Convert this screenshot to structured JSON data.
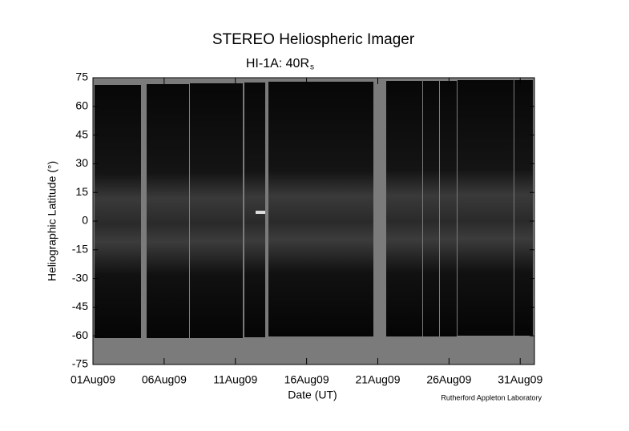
{
  "chart_data": {
    "type": "image",
    "title": "STEREO Heliospheric Imager",
    "subtitle": {
      "text": "HI-1A: 40R",
      "subscript": "s"
    },
    "x_label": "Date (UT)",
    "y_label": "Heliographic Latitude (°)",
    "credit": "Rutherford Appleton Laboratory",
    "xlim": [
      "2009-08-01",
      "2009-09-01"
    ],
    "xticks": [
      {
        "value": "2009-08-01",
        "label": "01Aug09"
      },
      {
        "value": "2009-08-06",
        "label": "06Aug09"
      },
      {
        "value": "2009-08-11",
        "label": "11Aug09"
      },
      {
        "value": "2009-08-16",
        "label": "16Aug09"
      },
      {
        "value": "2009-08-21",
        "label": "21Aug09"
      },
      {
        "value": "2009-08-26",
        "label": "26Aug09"
      },
      {
        "value": "2009-08-31",
        "label": "31Aug09"
      }
    ],
    "ylim": [
      -75,
      75
    ],
    "yticks": [
      75,
      60,
      45,
      30,
      15,
      0,
      -15,
      -30,
      -45,
      -60,
      -75
    ]
  }
}
